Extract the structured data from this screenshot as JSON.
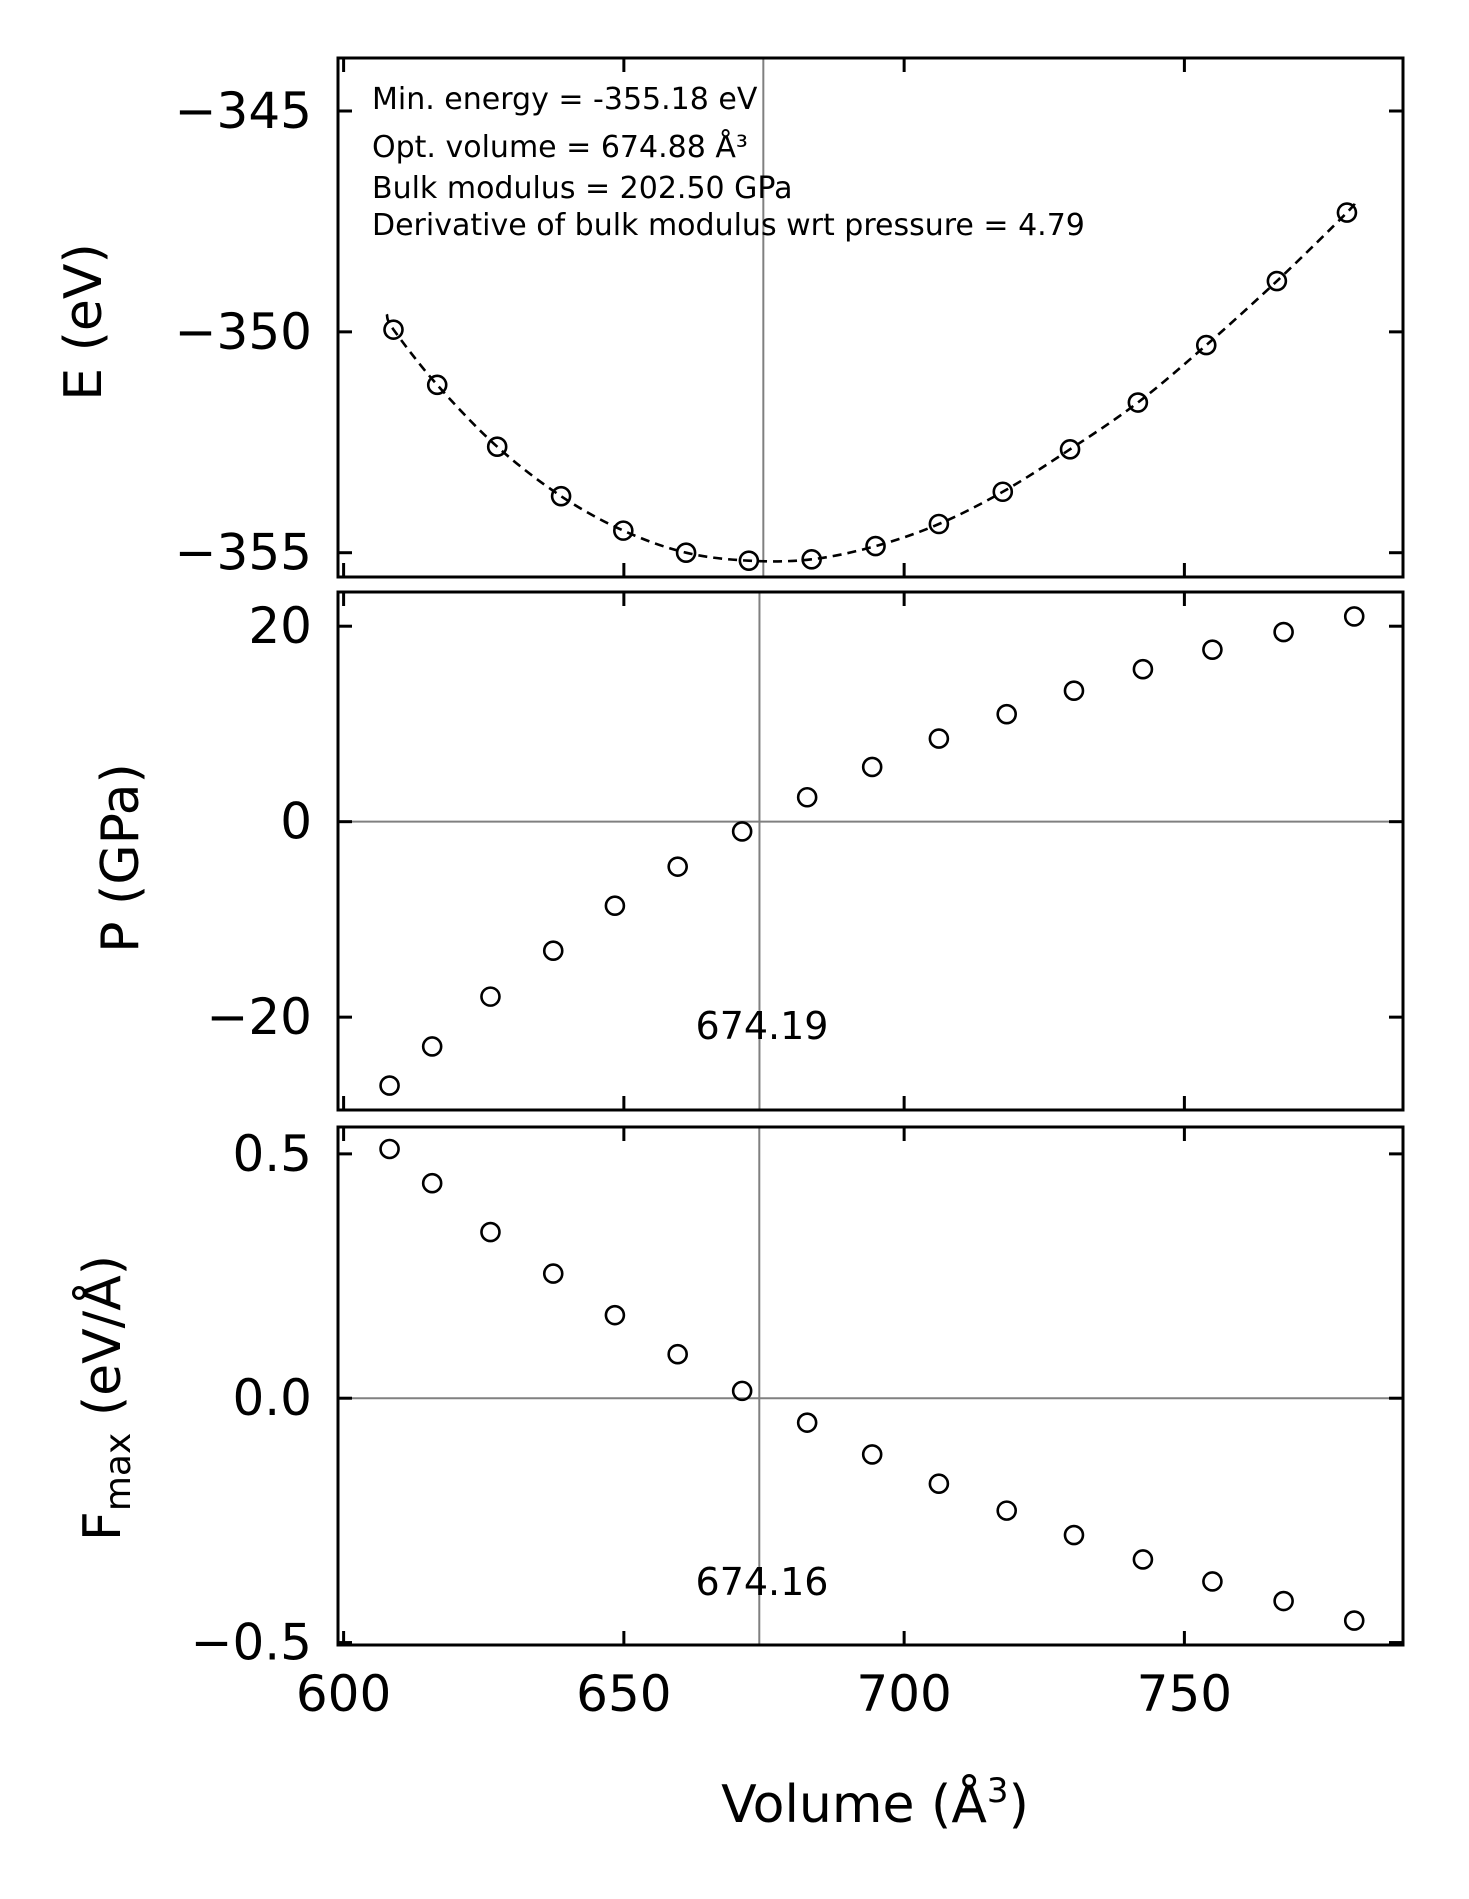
{
  "chart_data": [
    {
      "type": "scatter",
      "id": "energy",
      "ylabel": "E (eV)",
      "xlabel": "",
      "x": [
        608.9,
        616.7,
        627.4,
        638.8,
        649.9,
        661.1,
        672.3,
        683.5,
        694.9,
        706.2,
        717.6,
        729.6,
        741.7,
        753.9,
        766.5,
        779.0
      ],
      "y": [
        -349.95,
        -351.2,
        -352.6,
        -353.72,
        -354.5,
        -355.0,
        -355.18,
        -355.15,
        -354.85,
        -354.35,
        -353.62,
        -352.66,
        -351.6,
        -350.3,
        -348.85,
        -347.3
      ],
      "ylim": [
        -355.55,
        -343.8
      ],
      "yticks": [
        -355,
        -350,
        -345
      ],
      "ytick_labels": [
        "−355",
        "−350",
        "−345"
      ],
      "fit": {
        "style": "dashed",
        "model": "Birch-Murnaghan EOS"
      },
      "refline_x": 674.88,
      "annotations": [
        "Min. energy = -355.18 eV",
        "Opt. volume = 674.88 Å³",
        "Bulk modulus = 202.50 GPa",
        "Derivative of bulk modulus wrt pressure = 4.79"
      ]
    },
    {
      "type": "scatter",
      "id": "pressure",
      "ylabel": "P (GPa)",
      "xlabel": "",
      "x": [
        608.2,
        615.8,
        626.2,
        637.4,
        648.4,
        659.6,
        671.1,
        682.7,
        694.3,
        706.2,
        718.3,
        730.3,
        742.6,
        755.0,
        767.7,
        780.3
      ],
      "y": [
        -27.0,
        -23.0,
        -17.9,
        -13.2,
        -8.6,
        -4.6,
        -1.0,
        2.5,
        5.6,
        8.5,
        11.0,
        13.4,
        15.6,
        17.6,
        19.4,
        21.0
      ],
      "ylim": [
        -29.5,
        23.5
      ],
      "yticks": [
        -20,
        0,
        20
      ],
      "ytick_labels": [
        "−20",
        "0",
        "20"
      ],
      "refline_x": 674.19,
      "refline_y": 0,
      "vline_label": "674.19"
    },
    {
      "type": "scatter",
      "id": "fmax",
      "ylabel_main": "F",
      "ylabel_sub": "max",
      "ylabel_units": " (eV/Å)",
      "xlabel_main": "Volume (Å",
      "xlabel_sup": "3",
      "xlabel_close": ")",
      "x": [
        608.2,
        615.8,
        626.2,
        637.4,
        648.4,
        659.6,
        671.1,
        682.7,
        694.3,
        706.2,
        718.3,
        730.3,
        742.6,
        755.0,
        767.7,
        780.3
      ],
      "y": [
        0.51,
        0.44,
        0.34,
        0.255,
        0.17,
        0.09,
        0.015,
        -0.05,
        -0.115,
        -0.175,
        -0.23,
        -0.28,
        -0.33,
        -0.375,
        -0.415,
        -0.455
      ],
      "ylim": [
        -0.505,
        0.555
      ],
      "yticks": [
        -0.5,
        0.0,
        0.5
      ],
      "ytick_labels": [
        "−0.5",
        "0.0",
        "0.5"
      ],
      "refline_x": 674.16,
      "refline_y": 0,
      "vline_label": "674.16"
    }
  ],
  "shared_x": {
    "xlim": [
      599,
      789
    ],
    "xticks": [
      600,
      650,
      700,
      750
    ],
    "xtick_labels": [
      "600",
      "650",
      "700",
      "750"
    ]
  }
}
